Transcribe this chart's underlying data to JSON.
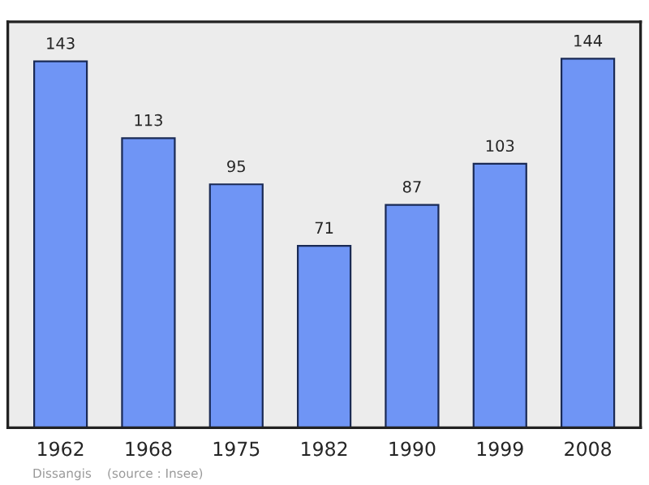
{
  "chart_data": {
    "type": "bar",
    "categories": [
      "1962",
      "1968",
      "1975",
      "1982",
      "1990",
      "1999",
      "2008"
    ],
    "values": [
      143,
      113,
      95,
      71,
      87,
      103,
      144
    ],
    "color": "#6f95f5",
    "data_labels": true,
    "tick_labels": "x",
    "grid": false,
    "annotations": [
      "Dissangis",
      "(source : Insee)"
    ]
  }
}
